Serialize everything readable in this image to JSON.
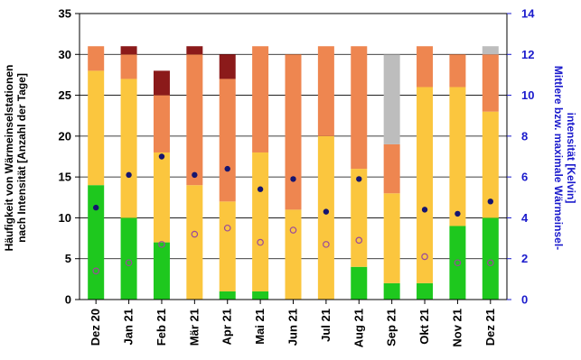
{
  "chart_data": {
    "type": "bar",
    "stacked": true,
    "categories": [
      "Dez 20",
      "Jan 21",
      "Feb 21",
      "Mär 21",
      "Apr 21",
      "Mai 21",
      "Jun 21",
      "Jul 21",
      "Aug 21",
      "Sep 21",
      "Okt 21",
      "Nov 21",
      "Dez 21"
    ],
    "series": [
      {
        "color": "#1ec81e",
        "values": [
          14,
          10,
          7,
          0,
          1,
          1,
          0,
          0,
          4,
          2,
          2,
          9,
          10
        ]
      },
      {
        "color": "#fbc63e",
        "values": [
          14,
          17,
          11,
          14,
          11,
          17,
          11,
          20,
          12,
          11,
          24,
          17,
          13
        ]
      },
      {
        "color": "#ee8650",
        "values": [
          3,
          3,
          7,
          16,
          15,
          13,
          19,
          11,
          15,
          6,
          5,
          4,
          7
        ]
      },
      {
        "color": "#8b1a1a",
        "values": [
          0,
          1,
          3,
          1,
          3,
          0,
          0,
          0,
          0,
          0,
          0,
          0,
          0
        ]
      },
      {
        "color": "#bdbdbd",
        "values": [
          0,
          0,
          0,
          0,
          0,
          0,
          0,
          0,
          0,
          11,
          0,
          0,
          1
        ]
      }
    ],
    "mean_intensity": {
      "color": "#151570",
      "values": [
        4.5,
        6.1,
        7.0,
        6.1,
        6.4,
        5.4,
        5.9,
        4.3,
        5.9,
        null,
        4.4,
        4.2,
        4.8
      ]
    },
    "max_intensity": {
      "color": "#9a4a9a",
      "values": [
        1.4,
        1.8,
        2.7,
        3.2,
        3.5,
        2.8,
        3.4,
        2.7,
        2.9,
        null,
        2.1,
        1.8,
        1.8
      ]
    },
    "y_left": {
      "label": "Häufigkeit von Wärmeinselstationen nach Intensität [Anzahl der Tage]",
      "ylim": [
        0,
        35
      ],
      "ticks": [
        0,
        5,
        10,
        15,
        20,
        25,
        30,
        35
      ],
      "color": "#000000"
    },
    "y_right": {
      "label": "Mittlere bzw. maximale Wärmeinsel-intensität [Kelvin]",
      "ylim": [
        0,
        14
      ],
      "ticks": [
        0,
        2,
        4,
        6,
        8,
        10,
        12,
        14
      ],
      "color": "#1a1acc"
    },
    "grid": true
  }
}
